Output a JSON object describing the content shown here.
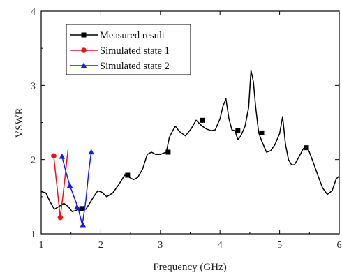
{
  "chart_data": {
    "type": "line",
    "xlabel": "Frequency (GHz)",
    "ylabel": "VSWR",
    "xlim": [
      1,
      6
    ],
    "ylim": [
      1,
      4
    ],
    "x_ticks": [
      1,
      2,
      3,
      4,
      5,
      6
    ],
    "y_ticks": [
      1,
      2,
      3,
      4
    ],
    "x_tick_labels": [
      "1",
      "2",
      "3",
      "4",
      "5",
      "6"
    ],
    "y_tick_labels": [
      "1",
      "2",
      "3",
      "4"
    ],
    "grid": false,
    "legend_position": "top-left",
    "series": [
      {
        "name": "Measured result",
        "color": "#000000",
        "marker": "square",
        "x": [
          1.0,
          1.08,
          1.15,
          1.22,
          1.3,
          1.38,
          1.45,
          1.52,
          1.6,
          1.68,
          1.75,
          1.82,
          1.88,
          1.95,
          2.02,
          2.1,
          2.2,
          2.3,
          2.4,
          2.48,
          2.55,
          2.62,
          2.7,
          2.78,
          2.85,
          2.92,
          3.0,
          3.1,
          3.15,
          3.2,
          3.25,
          3.32,
          3.42,
          3.52,
          3.6,
          3.7,
          3.78,
          3.85,
          3.92,
          4.0,
          4.05,
          4.1,
          4.15,
          4.2,
          4.25,
          4.3,
          4.35,
          4.42,
          4.48,
          4.52,
          4.56,
          4.6,
          4.65,
          4.7,
          4.78,
          4.85,
          4.92,
          5.0,
          5.05,
          5.1,
          5.15,
          5.2,
          5.25,
          5.32,
          5.4,
          5.45,
          5.5,
          5.57,
          5.65,
          5.72,
          5.8,
          5.88,
          5.95,
          6.0
        ],
        "y": [
          1.57,
          1.55,
          1.43,
          1.33,
          1.37,
          1.41,
          1.37,
          1.3,
          1.32,
          1.34,
          1.33,
          1.42,
          1.5,
          1.58,
          1.56,
          1.5,
          1.55,
          1.66,
          1.79,
          1.76,
          1.73,
          1.76,
          1.87,
          2.07,
          2.1,
          2.07,
          2.07,
          2.1,
          2.3,
          2.38,
          2.45,
          2.38,
          2.32,
          2.42,
          2.53,
          2.45,
          2.41,
          2.39,
          2.4,
          2.55,
          2.72,
          2.82,
          2.55,
          2.4,
          2.39,
          2.27,
          2.32,
          2.45,
          2.7,
          3.2,
          3.05,
          2.7,
          2.36,
          2.25,
          2.1,
          2.12,
          2.2,
          2.35,
          2.58,
          2.2,
          2.0,
          1.93,
          1.93,
          2.03,
          2.15,
          2.18,
          2.1,
          1.95,
          1.77,
          1.62,
          1.53,
          1.58,
          1.74,
          1.78
        ],
        "marker_x": [
          1.68,
          2.45,
          3.13,
          3.7,
          4.3,
          4.7,
          5.45
        ],
        "marker_y": [
          1.34,
          1.79,
          2.1,
          2.53,
          2.39,
          2.36,
          2.16
        ]
      },
      {
        "name": "Simulated state 1",
        "color": "#e8131b",
        "marker": "circle",
        "x": [
          1.21,
          1.27,
          1.32,
          1.38,
          1.45
        ],
        "y": [
          2.05,
          1.6,
          1.22,
          1.62,
          2.13
        ],
        "marker_x": [
          1.21,
          1.32
        ],
        "marker_y": [
          2.05,
          1.22
        ]
      },
      {
        "name": "Simulated state 2",
        "color": "#1c1cdc",
        "marker": "triangle",
        "x": [
          1.35,
          1.42,
          1.48,
          1.55,
          1.62,
          1.69,
          1.75,
          1.8,
          1.84
        ],
        "y": [
          2.04,
          1.82,
          1.65,
          1.5,
          1.35,
          1.12,
          1.45,
          1.85,
          2.1
        ],
        "marker_x": [
          1.35,
          1.48,
          1.6,
          1.7,
          1.84
        ],
        "marker_y": [
          2.04,
          1.65,
          1.36,
          1.12,
          2.1
        ]
      }
    ]
  }
}
